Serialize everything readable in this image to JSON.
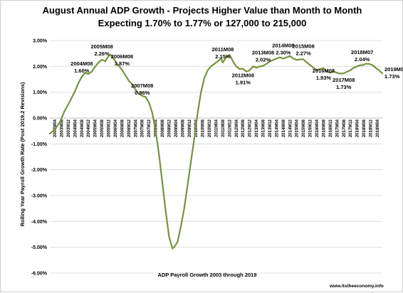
{
  "chart_data": {
    "type": "line",
    "title_line1": "August Annual ADP Growth - Projects Higher Value than Month to Month",
    "title_line2": "Expecting 1.70% to 1.77% or 127,000 to 215,000",
    "xlabel": "ADP Payroll Growth 2003 through 2019",
    "ylabel": "Rolling Year Payroll Growth Rate (Post 2019.2 Revisions)",
    "credit": "www.itstheeconomy.info",
    "ylim": [
      -6,
      3
    ],
    "y_ticks": [
      "-6.00%",
      "-5.00%",
      "-4.00%",
      "-3.00%",
      "-2.00%",
      "-1.00%",
      "0.00%",
      "1.00%",
      "2.00%",
      "3.00%"
    ],
    "y_tick_values": [
      -6,
      -5,
      -4,
      -3,
      -2,
      -1,
      0,
      1,
      2,
      3
    ],
    "x_ticks": [
      "2003M04",
      "2003M08",
      "2003M12",
      "2004M04",
      "2004M08",
      "2004M12",
      "2005M04",
      "2005M08",
      "2005M12",
      "2006M04",
      "2006M08",
      "2006M12",
      "2007M04",
      "2007M08",
      "2007M12",
      "2008M04",
      "2008M08",
      "2008M12",
      "2009M04",
      "2009M08",
      "2009M12",
      "2010M04",
      "2010M08",
      "2010M12",
      "2011M04",
      "2011M08",
      "2011M12",
      "2012M04",
      "2012M08",
      "2012M12",
      "2013M04",
      "2013M08",
      "2013M12",
      "2014M04",
      "2014M08",
      "2014M12",
      "2015M04",
      "2015M08",
      "2015M12",
      "2016M04",
      "2016M08",
      "2016M12",
      "2017M04",
      "2017M08",
      "2017M12",
      "2018M04",
      "2018M08",
      "2018M12",
      "2019M04"
    ],
    "grid": true,
    "line_color": "#77933c",
    "series": [
      {
        "x": [
          "2003M01",
          "2003M04",
          "2003M07",
          "2003M10",
          "2004M01",
          "2004M04",
          "2004M06",
          "2004M08",
          "2004M10",
          "2004M12",
          "2005M02",
          "2005M04",
          "2005M06",
          "2005M08",
          "2005M10",
          "2005M12",
          "2006M01",
          "2006M03",
          "2006M05",
          "2006M07",
          "2006M08",
          "2006M10",
          "2006M12",
          "2007M02",
          "2007M04",
          "2007M06",
          "2007M08",
          "2007M10",
          "2007M12",
          "2008M02",
          "2008M04",
          "2008M06",
          "2008M08",
          "2008M10",
          "2008M12",
          "2009M02",
          "2009M03",
          "2009M05",
          "2009M07",
          "2009M09",
          "2009M11",
          "2010M01",
          "2010M03",
          "2010M05",
          "2010M07",
          "2010M09",
          "2010M11",
          "2011M01",
          "2011M03",
          "2011M05",
          "2011M07",
          "2011M08",
          "2011M10",
          "2011M12",
          "2012M02",
          "2012M04",
          "2012M06",
          "2012M08",
          "2012M10",
          "2012M12",
          "2013M02",
          "2013M04",
          "2013M06",
          "2013M08",
          "2013M10",
          "2013M12",
          "2014M02",
          "2014M04",
          "2014M06",
          "2014M08",
          "2014M10",
          "2014M12",
          "2015M02",
          "2015M04",
          "2015M06",
          "2015M08",
          "2015M10",
          "2015M12",
          "2016M02",
          "2016M04",
          "2016M06",
          "2016M08",
          "2016M10",
          "2016M12",
          "2017M02",
          "2017M04",
          "2017M06",
          "2017M08",
          "2017M10",
          "2017M12",
          "2018M02",
          "2018M04",
          "2018M06",
          "2018M07",
          "2018M09",
          "2018M11",
          "2019M01",
          "2019M03",
          "2019M05",
          "2019M07"
        ],
        "values": [
          -0.6,
          -0.45,
          -0.15,
          0.3,
          0.65,
          1.05,
          1.35,
          1.6,
          1.75,
          1.7,
          1.8,
          2.0,
          2.15,
          2.26,
          2.2,
          2.4,
          2.45,
          2.3,
          2.1,
          1.95,
          1.87,
          1.65,
          1.45,
          1.3,
          1.1,
          0.95,
          0.86,
          0.82,
          0.6,
          0.2,
          -0.5,
          -1.4,
          -2.5,
          -3.6,
          -4.6,
          -5.05,
          -5.0,
          -4.8,
          -4.2,
          -3.5,
          -2.6,
          -1.7,
          -0.8,
          0.2,
          1.0,
          1.55,
          1.85,
          2.0,
          2.1,
          2.2,
          2.3,
          2.15,
          2.35,
          2.45,
          2.2,
          2.0,
          1.9,
          1.91,
          1.8,
          1.85,
          2.0,
          1.95,
          2.0,
          2.02,
          2.1,
          2.2,
          2.25,
          2.3,
          2.35,
          2.3,
          2.35,
          2.4,
          2.3,
          2.25,
          2.27,
          2.27,
          2.15,
          2.05,
          1.95,
          1.85,
          1.9,
          1.93,
          1.8,
          1.75,
          1.8,
          1.75,
          1.72,
          1.73,
          1.8,
          1.85,
          1.95,
          2.0,
          2.05,
          2.04,
          2.1,
          2.1,
          2.05,
          1.95,
          1.85,
          1.73
        ]
      }
    ],
    "annotations": [
      {
        "x": "2004M08",
        "y": 1.6,
        "label": "2004M08",
        "value": "1.60%"
      },
      {
        "x": "2005M08",
        "y": 2.26,
        "label": "2005M08",
        "value": "2.26%"
      },
      {
        "x": "2006M08",
        "y": 1.87,
        "label": "2006M08",
        "value": "1.87%"
      },
      {
        "x": "2007M08",
        "y": 0.86,
        "label": "2007M08",
        "value": "0.86%"
      },
      {
        "x": "2011M08",
        "y": 2.15,
        "label": "2011M08",
        "value": "2.15%"
      },
      {
        "x": "2012M08",
        "y": 1.91,
        "label": "2012M08",
        "value": "1.91%"
      },
      {
        "x": "2013M08",
        "y": 2.02,
        "label": "2013M08",
        "value": "2.02%"
      },
      {
        "x": "2014M08",
        "y": 2.3,
        "label": "2014M08",
        "value": "2.30%"
      },
      {
        "x": "2015M08",
        "y": 2.27,
        "label": "2015M08",
        "value": "2.27%"
      },
      {
        "x": "2016M08",
        "y": 1.93,
        "label": "2016M08",
        "value": "1.93%"
      },
      {
        "x": "2017M08",
        "y": 1.73,
        "label": "2017M08",
        "value": "1.73%"
      },
      {
        "x": "2018M07",
        "y": 2.04,
        "label": "2018M07",
        "value": "2.04%"
      },
      {
        "x": "2019M07",
        "y": 1.73,
        "label": "2019M07",
        "value": "1.73%"
      }
    ]
  }
}
